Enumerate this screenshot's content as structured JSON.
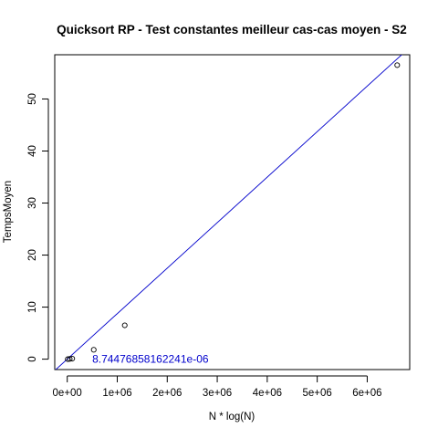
{
  "chart_data": {
    "type": "scatter",
    "title": "Quicksort RP - Test constantes meilleur cas-cas moyen - S2",
    "xlabel": "N * log(N)",
    "ylabel": "TempsMoyen",
    "xlim": [
      -250000,
      6850000
    ],
    "ylim": [
      -2,
      58.5
    ],
    "x_ticks": [
      0,
      1000000,
      2000000,
      3000000,
      4000000,
      5000000,
      6000000
    ],
    "x_tick_labels": [
      "0e+00",
      "1e+06",
      "2e+06",
      "3e+06",
      "4e+06",
      "5e+06",
      "6e+06"
    ],
    "y_ticks": [
      0,
      10,
      20,
      30,
      40,
      50
    ],
    "y_tick_labels": [
      "0",
      "10",
      "20",
      "30",
      "40",
      "50"
    ],
    "points": [
      {
        "x": 10000,
        "y": 0.0
      },
      {
        "x": 50000,
        "y": 0.05
      },
      {
        "x": 100000,
        "y": 0.1
      },
      {
        "x": 530000,
        "y": 1.8
      },
      {
        "x": 1150000,
        "y": 6.5
      },
      {
        "x": 6600000,
        "y": 56.5
      }
    ],
    "fit_line": {
      "slope": 8.74476858162241e-06,
      "intercept": 0,
      "color": "#0000cc"
    },
    "annotation": {
      "text": "8.74476858162241e-06",
      "x": 500000,
      "y": 0,
      "color": "#0000cc"
    },
    "grid": false,
    "legend": "none"
  }
}
